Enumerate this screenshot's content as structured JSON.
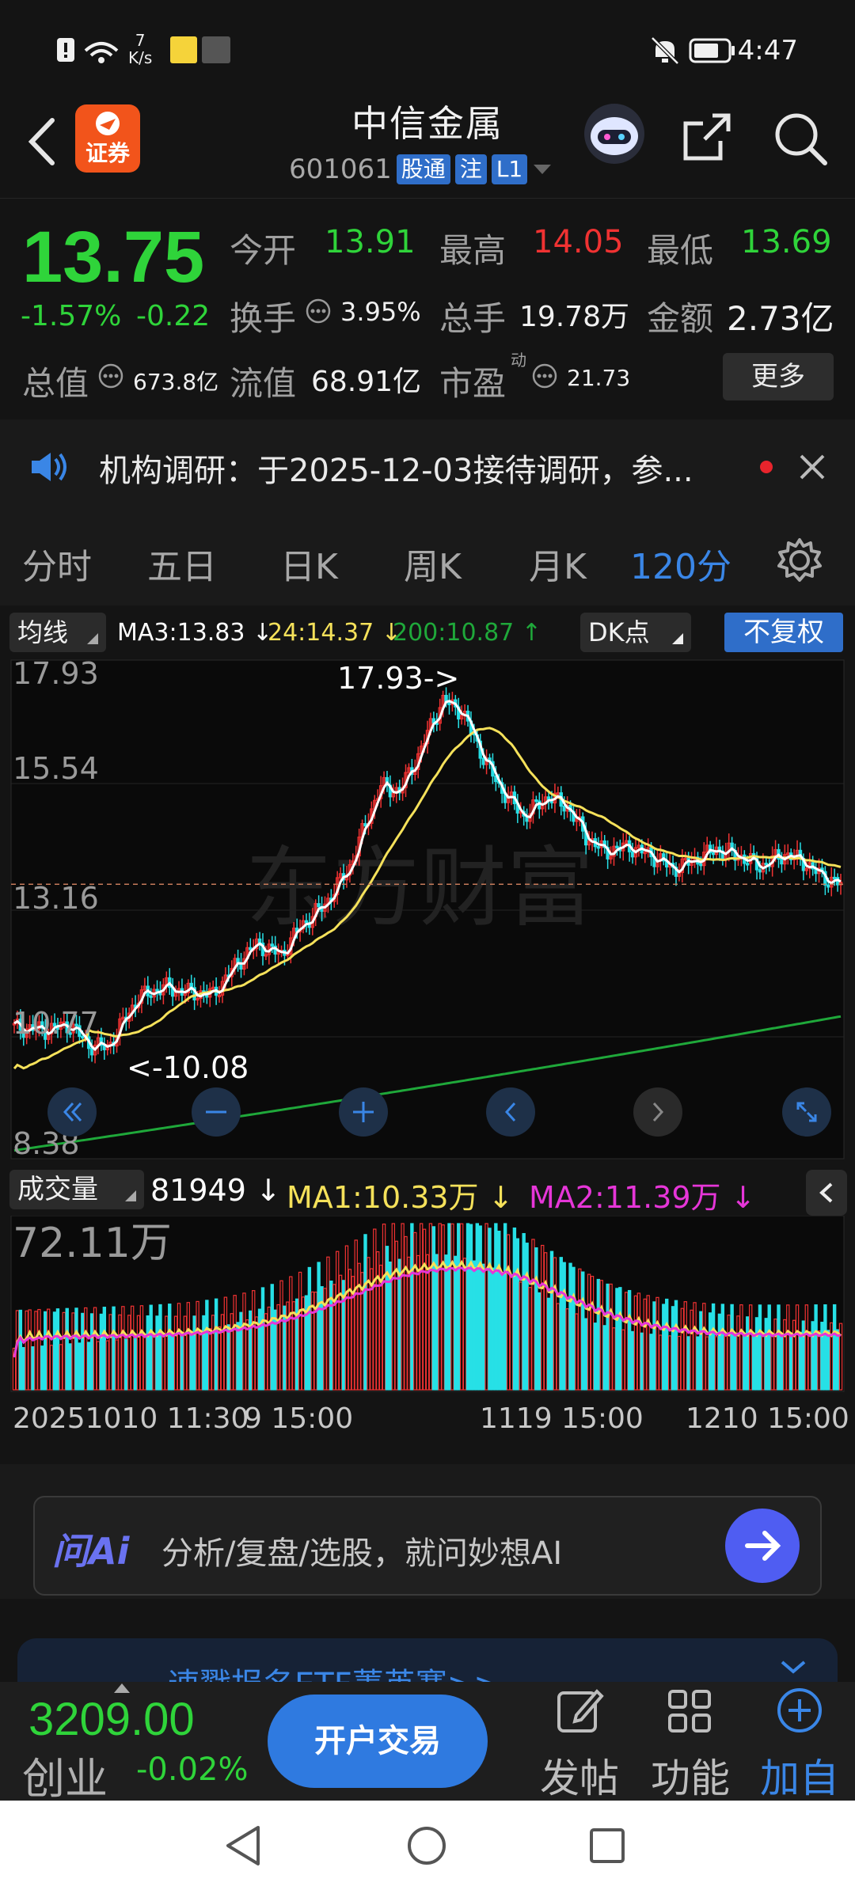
{
  "status_bar": {
    "net_speed_value": "7",
    "net_speed_unit": "K/s",
    "time": "4:47"
  },
  "header": {
    "app_badge": "证券",
    "title": "中信金属",
    "code": "601061",
    "tags": [
      "股通",
      "注",
      "L1"
    ]
  },
  "quote": {
    "price": "13.75",
    "change_pct": "-1.57%",
    "change_abs": "-0.22",
    "open_label": "今开",
    "open_value": "13.91",
    "high_label": "最高",
    "high_value": "14.05",
    "low_label": "最低",
    "low_value": "13.69",
    "turnover_label": "换手",
    "turnover_value": "3.95%",
    "volume_label": "总手",
    "volume_value": "19.78万",
    "amount_label": "金额",
    "amount_value": "2.73亿",
    "total_cap_label": "总值",
    "total_cap_value": "673.8亿",
    "float_cap_label": "流值",
    "float_cap_value": "68.91亿",
    "pe_label": "市盈",
    "pe_sup": "动",
    "pe_value": "21.73",
    "more_label": "更多"
  },
  "notice": {
    "text": "机构调研：于2025-12-03接待调研，参..."
  },
  "tabs": [
    {
      "label": "分时"
    },
    {
      "label": "五日"
    },
    {
      "label": "日K"
    },
    {
      "label": "周K"
    },
    {
      "label": "月K"
    },
    {
      "label": "120分"
    }
  ],
  "ma_row": {
    "selector": "均线",
    "ma3": "MA3:13.83",
    "ma24": "24:14.37",
    "ma200": "200:10.87",
    "dk": "DK点",
    "adjust": "不复权"
  },
  "chart_data": {
    "type": "candlestick",
    "price_axis_ticks": [
      "17.93",
      "15.54",
      "13.16",
      "10.77",
      "8.38"
    ],
    "ylim": [
      8.38,
      17.93
    ],
    "max_annotation": "17.93->",
    "min_annotation": "<-10.08",
    "watermark": "东方财富",
    "last_close_line": 13.75,
    "volume": {
      "selector": "成交量",
      "current": "81949",
      "ma1": "MA1:10.33万",
      "ma2": "MA2:11.39万",
      "axis_max": "72.11万"
    },
    "date_labels": [
      "20251010 11:30",
      "9 15:00",
      "1119 15:00",
      "1210 15:00"
    ]
  },
  "colors": {
    "up": "#f03232",
    "down": "#2fd43a",
    "candle_down": "#27e0e6",
    "ma3": "#ffffff",
    "ma24": "#f5e15a",
    "ma200": "#1fa83a",
    "vol_ma1": "#f5e15a",
    "vol_ma2": "#e636d8",
    "accent": "#3a86e6"
  },
  "ai_bar": {
    "logo": "问Ai",
    "placeholder": "分析/复盘/选股，就问妙想AI"
  },
  "promo": {
    "text": "速戳报名ETF菁英赛>>"
  },
  "bottom_bar": {
    "index_value": "3209.00",
    "index_name": "创业",
    "index_change": "-0.02%",
    "trade_button": "开户交易",
    "post_label": "发帖",
    "func_label": "功能",
    "add_label": "加自"
  }
}
